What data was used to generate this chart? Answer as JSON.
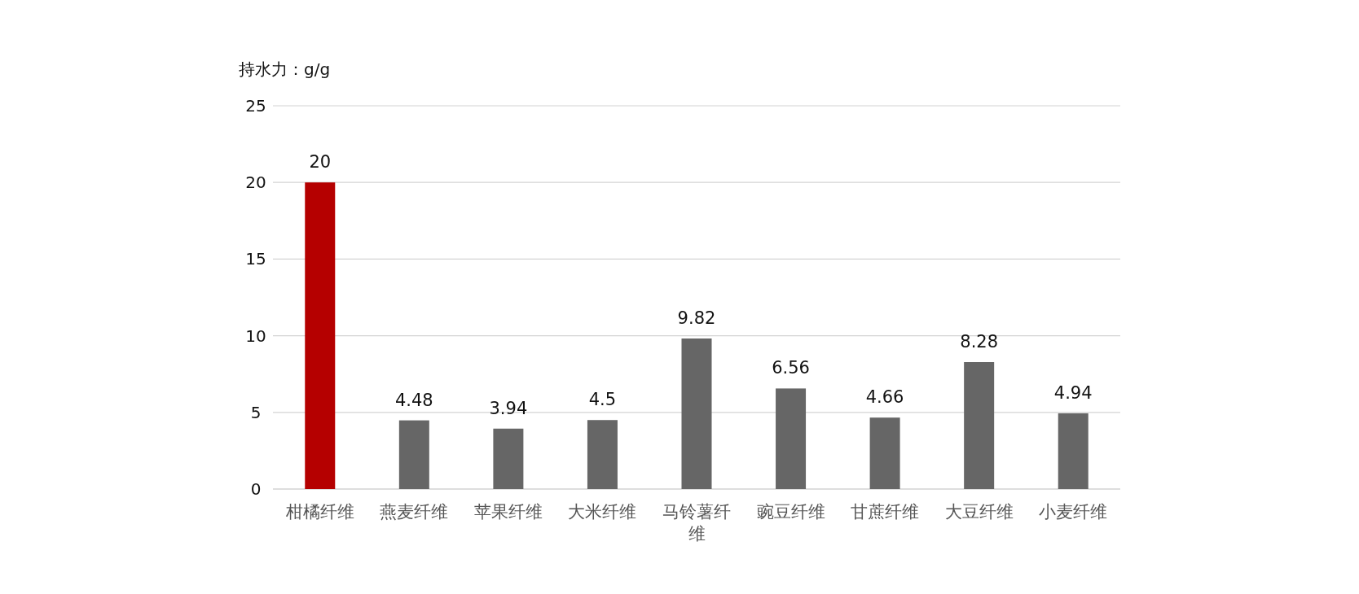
{
  "chart_data": {
    "type": "bar",
    "ylabel": "持水力：g/g",
    "categories": [
      "柑橘纤维",
      "燕麦纤维",
      "苹果纤维",
      "大米纤维",
      "马铃薯纤维",
      "豌豆纤维",
      "甘蔗纤维",
      "大豆纤维",
      "小麦纤维"
    ],
    "values": [
      20,
      4.48,
      3.94,
      4.5,
      9.82,
      6.56,
      4.66,
      8.28,
      4.94
    ],
    "colors": [
      "#b50000",
      "#666666",
      "#666666",
      "#666666",
      "#666666",
      "#666666",
      "#666666",
      "#666666",
      "#666666"
    ],
    "ylim": [
      0,
      25
    ],
    "yticks": [
      0,
      5,
      10,
      15,
      20,
      25
    ],
    "grid": "y",
    "data_labels": true
  }
}
